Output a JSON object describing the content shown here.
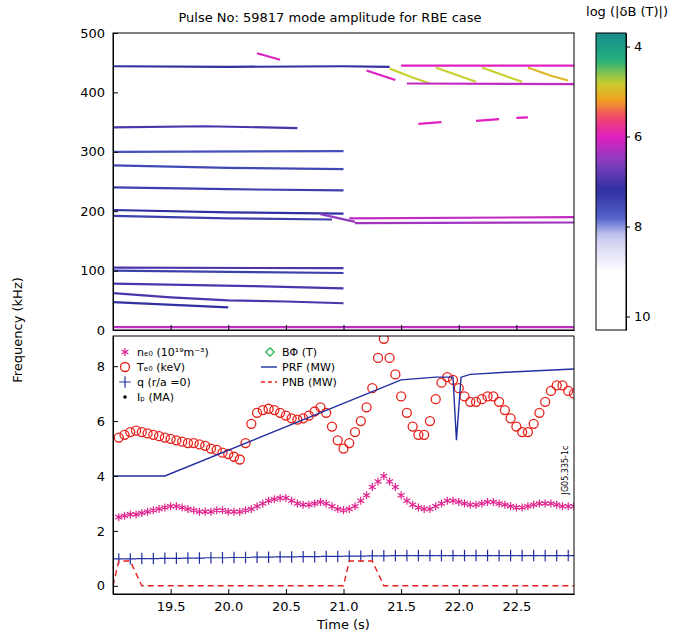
{
  "chart_data": [
    {
      "type": "spectrogram",
      "title": "Pulse No: 59817 mode amplitude for RBE case",
      "ylabel": "Frequency (kHz)",
      "xlim": [
        19.0,
        23.0
      ],
      "xticks": [
        19.5,
        20,
        20.5,
        21,
        21.5,
        22,
        22.5
      ],
      "ylim": [
        0,
        500
      ],
      "yticks": [
        0,
        100,
        200,
        300,
        400,
        500
      ],
      "tick_labels": "y",
      "colorbar": {
        "title": "log (|δB (T)|)",
        "range": [
          10.3,
          3.7
        ],
        "ticks": [
          4,
          6,
          8,
          10
        ]
      },
      "series": [
        {
          "x": [
            19.0,
            20.0,
            21.0,
            21.4
          ],
          "values": [
            444,
            443,
            444,
            443
          ],
          "amplitude": 7.2
        },
        {
          "x": [
            20.25,
            20.45
          ],
          "values": [
            466,
            455
          ],
          "amplitude": 6.0
        },
        {
          "x": [
            21.2,
            21.45
          ],
          "values": [
            437,
            421
          ],
          "amplitude": 6.0
        },
        {
          "x": [
            21.4,
            21.6,
            21.75
          ],
          "values": [
            440,
            425,
            415
          ],
          "amplitude": 4.8
        },
        {
          "x": [
            21.8,
            22.0,
            22.15
          ],
          "values": [
            442,
            428,
            418
          ],
          "amplitude": 4.8
        },
        {
          "x": [
            22.2,
            22.4,
            22.55
          ],
          "values": [
            442,
            428,
            418
          ],
          "amplitude": 4.8
        },
        {
          "x": [
            22.6,
            22.8,
            22.95
          ],
          "values": [
            442,
            428,
            420
          ],
          "amplitude": 5.0
        },
        {
          "x": [
            21.55,
            23.0
          ],
          "values": [
            415,
            414
          ],
          "amplitude": 6.2
        },
        {
          "x": [
            21.5,
            23.0
          ],
          "values": [
            445,
            445
          ],
          "amplitude": 6.0
        },
        {
          "x": [
            19.0,
            19.8,
            20.6
          ],
          "values": [
            341,
            343,
            340
          ],
          "amplitude": 7.0
        },
        {
          "x": [
            21.65,
            21.85
          ],
          "values": [
            347,
            350
          ],
          "amplitude": 6.0
        },
        {
          "x": [
            22.15,
            22.35
          ],
          "values": [
            352,
            355
          ],
          "amplitude": 6.0
        },
        {
          "x": [
            22.5,
            22.6
          ],
          "values": [
            357,
            358
          ],
          "amplitude": 6.0
        },
        {
          "x": [
            19.0,
            21.0
          ],
          "values": [
            300,
            301
          ],
          "amplitude": 7.6
        },
        {
          "x": [
            19.0,
            20.0,
            21.0
          ],
          "values": [
            277,
            273,
            271
          ],
          "amplitude": 7.5
        },
        {
          "x": [
            19.0,
            20.0,
            21.0
          ],
          "values": [
            240,
            237,
            235
          ],
          "amplitude": 7.4
        },
        {
          "x": [
            19.0,
            20.0,
            21.0
          ],
          "values": [
            202,
            198,
            196
          ],
          "amplitude": 7.2
        },
        {
          "x": [
            19.0,
            20.0,
            20.9
          ],
          "values": [
            192,
            188,
            186
          ],
          "amplitude": 7.4
        },
        {
          "x": [
            21.05,
            23.0
          ],
          "values": [
            188,
            190
          ],
          "amplitude": 6.2
        },
        {
          "x": [
            21.1,
            23.0
          ],
          "values": [
            180,
            181
          ],
          "amplitude": 6.4
        },
        {
          "x": [
            20.8,
            21.1
          ],
          "values": [
            195,
            182
          ],
          "amplitude": 6.5
        },
        {
          "x": [
            19.0,
            21.0
          ],
          "values": [
            105,
            104
          ],
          "amplitude": 7.0
        },
        {
          "x": [
            19.0,
            20.0,
            21.0
          ],
          "values": [
            100,
            98,
            96
          ],
          "amplitude": 7.4
        },
        {
          "x": [
            19.0,
            20.2,
            21.0
          ],
          "values": [
            78,
            74,
            70
          ],
          "amplitude": 7.0
        },
        {
          "x": [
            19.0,
            19.5,
            20.0,
            20.5,
            21.0
          ],
          "values": [
            62,
            55,
            50,
            48,
            45
          ],
          "amplitude": 7.0
        },
        {
          "x": [
            19.0,
            20.0
          ],
          "values": [
            47,
            38
          ],
          "amplitude": 7.2
        },
        {
          "x": [
            19.0,
            23.0
          ],
          "values": [
            5,
            5
          ],
          "amplitude": 6.2
        }
      ]
    },
    {
      "type": "line",
      "xlabel": "Time (s)",
      "annotation": "JG05.335-1c",
      "xlim": [
        19.0,
        23.0
      ],
      "xticks": [
        19.5,
        {
          "value": 20,
          "label": "20.0"
        },
        20.5,
        {
          "value": 21,
          "label": "21.0"
        },
        21.5,
        {
          "value": 22,
          "label": "22.0"
        },
        22.5
      ],
      "ylim": [
        -0.3,
        9.1
      ],
      "yticks": [
        0,
        2,
        4,
        6,
        8
      ],
      "legend": "upper left",
      "series": [
        {
          "name": "nₑ₀ (10¹⁹m⁻³)",
          "type": "scatter",
          "marker": "asterisk",
          "color": "#e0208c",
          "x": [
            19.05,
            19.1,
            19.15,
            19.2,
            19.25,
            19.3,
            19.35,
            19.4,
            19.45,
            19.5,
            19.55,
            19.6,
            19.65,
            19.7,
            19.75,
            19.8,
            19.85,
            19.9,
            19.95,
            20.0,
            20.05,
            20.1,
            20.15,
            20.2,
            20.25,
            20.3,
            20.35,
            20.4,
            20.45,
            20.5,
            20.55,
            20.6,
            20.65,
            20.7,
            20.75,
            20.8,
            20.85,
            20.9,
            20.95,
            21.0,
            21.05,
            21.1,
            21.15,
            21.2,
            21.25,
            21.3,
            21.35,
            21.4,
            21.45,
            21.5,
            21.55,
            21.6,
            21.65,
            21.7,
            21.75,
            21.8,
            21.85,
            21.9,
            21.95,
            22.0,
            22.05,
            22.1,
            22.15,
            22.2,
            22.25,
            22.3,
            22.35,
            22.4,
            22.45,
            22.5,
            22.55,
            22.6,
            22.65,
            22.7,
            22.75,
            22.8,
            22.85,
            22.9,
            22.95,
            23.0
          ],
          "values": [
            2.5,
            2.55,
            2.6,
            2.6,
            2.65,
            2.7,
            2.75,
            2.8,
            2.85,
            2.9,
            2.9,
            2.85,
            2.8,
            2.75,
            2.7,
            2.7,
            2.7,
            2.75,
            2.75,
            2.7,
            2.7,
            2.7,
            2.75,
            2.8,
            2.9,
            3.0,
            3.1,
            3.15,
            3.2,
            3.2,
            3.1,
            3.0,
            2.95,
            2.95,
            3.0,
            3.05,
            3.0,
            2.9,
            2.8,
            2.75,
            2.8,
            2.9,
            3.1,
            3.3,
            3.6,
            3.8,
            4.0,
            3.8,
            3.6,
            3.3,
            3.1,
            2.95,
            2.85,
            2.8,
            2.8,
            2.9,
            3.0,
            3.1,
            3.1,
            3.05,
            3.0,
            2.95,
            2.95,
            3.0,
            3.05,
            3.05,
            3.0,
            2.95,
            2.9,
            2.85,
            2.85,
            2.9,
            2.95,
            3.0,
            3.0,
            3.0,
            2.95,
            2.9,
            2.9,
            2.9
          ]
        },
        {
          "name": "Tₑ₀ (keV)",
          "type": "scatter",
          "marker": "circle-open",
          "color": "#e8201a",
          "x": [
            19.05,
            19.1,
            19.15,
            19.2,
            19.25,
            19.3,
            19.35,
            19.4,
            19.45,
            19.5,
            19.55,
            19.6,
            19.65,
            19.7,
            19.75,
            19.8,
            19.85,
            19.9,
            19.95,
            20.0,
            20.05,
            20.1,
            20.15,
            20.2,
            20.25,
            20.3,
            20.35,
            20.4,
            20.45,
            20.5,
            20.55,
            20.6,
            20.65,
            20.7,
            20.75,
            20.8,
            20.85,
            20.9,
            20.95,
            21.0,
            21.05,
            21.1,
            21.15,
            21.2,
            21.25,
            21.3,
            21.35,
            21.4,
            21.45,
            21.5,
            21.55,
            21.6,
            21.65,
            21.7,
            21.75,
            21.8,
            21.85,
            21.9,
            21.95,
            22.0,
            22.05,
            22.1,
            22.15,
            22.2,
            22.25,
            22.3,
            22.35,
            22.4,
            22.45,
            22.5,
            22.55,
            22.6,
            22.65,
            22.7,
            22.75,
            22.8,
            22.85,
            22.9,
            22.95,
            23.0
          ],
          "values": [
            5.4,
            5.5,
            5.6,
            5.65,
            5.6,
            5.55,
            5.5,
            5.45,
            5.4,
            5.35,
            5.3,
            5.25,
            5.2,
            5.2,
            5.15,
            5.1,
            5.0,
            4.95,
            4.85,
            4.8,
            4.7,
            4.6,
            5.2,
            5.9,
            6.3,
            6.4,
            6.45,
            6.4,
            6.3,
            6.2,
            6.1,
            6.05,
            6.1,
            6.2,
            6.35,
            6.5,
            6.3,
            5.8,
            5.3,
            5.0,
            5.2,
            5.6,
            6.0,
            6.5,
            7.2,
            8.3,
            9.0,
            8.3,
            7.7,
            6.9,
            6.3,
            5.8,
            5.5,
            5.5,
            6.0,
            6.8,
            7.4,
            7.6,
            7.5,
            7.2,
            6.9,
            6.7,
            6.7,
            6.8,
            6.9,
            6.9,
            6.7,
            6.4,
            6.1,
            5.8,
            5.6,
            5.6,
            5.9,
            6.3,
            6.7,
            7.1,
            7.3,
            7.3,
            7.1,
            7.0
          ]
        },
        {
          "name": "q (r/a =0)",
          "type": "scatter",
          "marker": "plus",
          "color": "#1f2fa0",
          "x": [
            19.05,
            19.15,
            19.25,
            19.35,
            19.45,
            19.55,
            19.65,
            19.75,
            19.85,
            19.95,
            20.05,
            20.15,
            20.25,
            20.35,
            20.45,
            20.55,
            20.65,
            20.75,
            20.85,
            20.95,
            21.05,
            21.15,
            21.25,
            21.35,
            21.45,
            21.55,
            21.65,
            21.75,
            21.85,
            21.95,
            22.05,
            22.15,
            22.25,
            22.35,
            22.45,
            22.55,
            22.65,
            22.75,
            22.85,
            22.95
          ],
          "values": [
            0.98,
            0.98,
            0.99,
            0.99,
            1.0,
            1.0,
            1.01,
            1.01,
            1.02,
            1.02,
            1.03,
            1.03,
            1.04,
            1.04,
            1.05,
            1.05,
            1.06,
            1.06,
            1.07,
            1.07,
            1.08,
            1.08,
            1.09,
            1.09,
            1.1,
            1.1,
            1.1,
            1.1,
            1.1,
            1.1,
            1.1,
            1.1,
            1.1,
            1.1,
            1.1,
            1.1,
            1.1,
            1.1,
            1.1,
            1.1
          ]
        },
        {
          "name": "Iₚ (MA)",
          "type": "scatter",
          "marker": "dot",
          "color": "#000000"
        },
        {
          "name": "BΦ (T)",
          "type": "scatter",
          "marker": "diamond-open",
          "color": "#22b04a"
        },
        {
          "name": "PRF (MW)",
          "type": "line",
          "line_style": "solid",
          "color": "#1f2fa0",
          "x": [
            19.0,
            19.45,
            21.5,
            21.8,
            21.95,
            21.98,
            22.02,
            22.1,
            22.5,
            23.0
          ],
          "values": [
            4.0,
            4.0,
            7.5,
            7.6,
            7.6,
            5.3,
            7.6,
            7.7,
            7.8,
            7.9
          ]
        },
        {
          "name": "PNB (MW)",
          "type": "line",
          "line_style": "dashed",
          "color": "#e8201a",
          "x": [
            19.0,
            19.05,
            19.15,
            19.25,
            21.0,
            21.05,
            21.25,
            21.35,
            23.0
          ],
          "values": [
            0,
            0.9,
            0.9,
            0,
            0,
            0.9,
            0.9,
            0,
            0
          ]
        }
      ]
    }
  ]
}
